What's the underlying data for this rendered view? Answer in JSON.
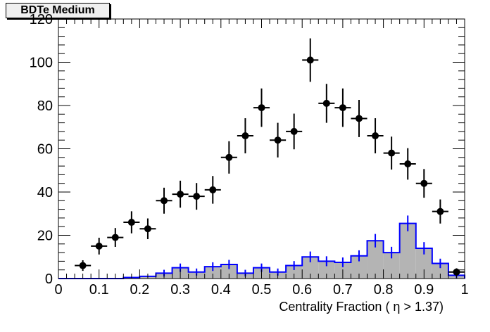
{
  "chart_data": {
    "type": "scatter",
    "title": "BDTe Medium",
    "xlabel": "Centrality Fraction ( η > 1.37)",
    "ylabel": "",
    "xlim": [
      0,
      1
    ],
    "ylim": [
      0,
      120
    ],
    "x_ticks": [
      "0",
      "0.1",
      "0.2",
      "0.3",
      "0.4",
      "0.5",
      "0.6",
      "0.7",
      "0.8",
      "0.9",
      "1"
    ],
    "y_ticks": [
      "0",
      "20",
      "40",
      "60",
      "80",
      "100",
      "120"
    ],
    "grid": false,
    "series": [
      {
        "kind": "points_with_errors",
        "color": "#000000",
        "x": [
          0.02,
          0.06,
          0.1,
          0.14,
          0.18,
          0.22,
          0.26,
          0.3,
          0.34,
          0.38,
          0.42,
          0.46,
          0.5,
          0.54,
          0.58,
          0.62,
          0.66,
          0.7,
          0.74,
          0.78,
          0.82,
          0.86,
          0.9,
          0.94,
          0.98
        ],
        "y": [
          0,
          6,
          15,
          19,
          26,
          23,
          36,
          39,
          38,
          41,
          56,
          66,
          79,
          64,
          68,
          101,
          81,
          79,
          74,
          66,
          58,
          53,
          44,
          31,
          3
        ]
      },
      {
        "kind": "filled_histogram",
        "fill": "#b4b4b4",
        "line": "#0000ff",
        "bin_edges": [
          0.0,
          0.04,
          0.08,
          0.12,
          0.16,
          0.2,
          0.24,
          0.28,
          0.32,
          0.36,
          0.4,
          0.44,
          0.48,
          0.52,
          0.56,
          0.6,
          0.64,
          0.68,
          0.72,
          0.76,
          0.8,
          0.84,
          0.88,
          0.92,
          0.96,
          1.0
        ],
        "values": [
          0,
          0,
          0,
          0,
          0.5,
          1,
          2.5,
          5,
          3,
          5.5,
          6.5,
          2.5,
          5,
          3,
          6,
          10,
          8,
          7.5,
          10.5,
          17.5,
          12,
          25.5,
          14,
          7,
          1.5
        ]
      }
    ]
  }
}
